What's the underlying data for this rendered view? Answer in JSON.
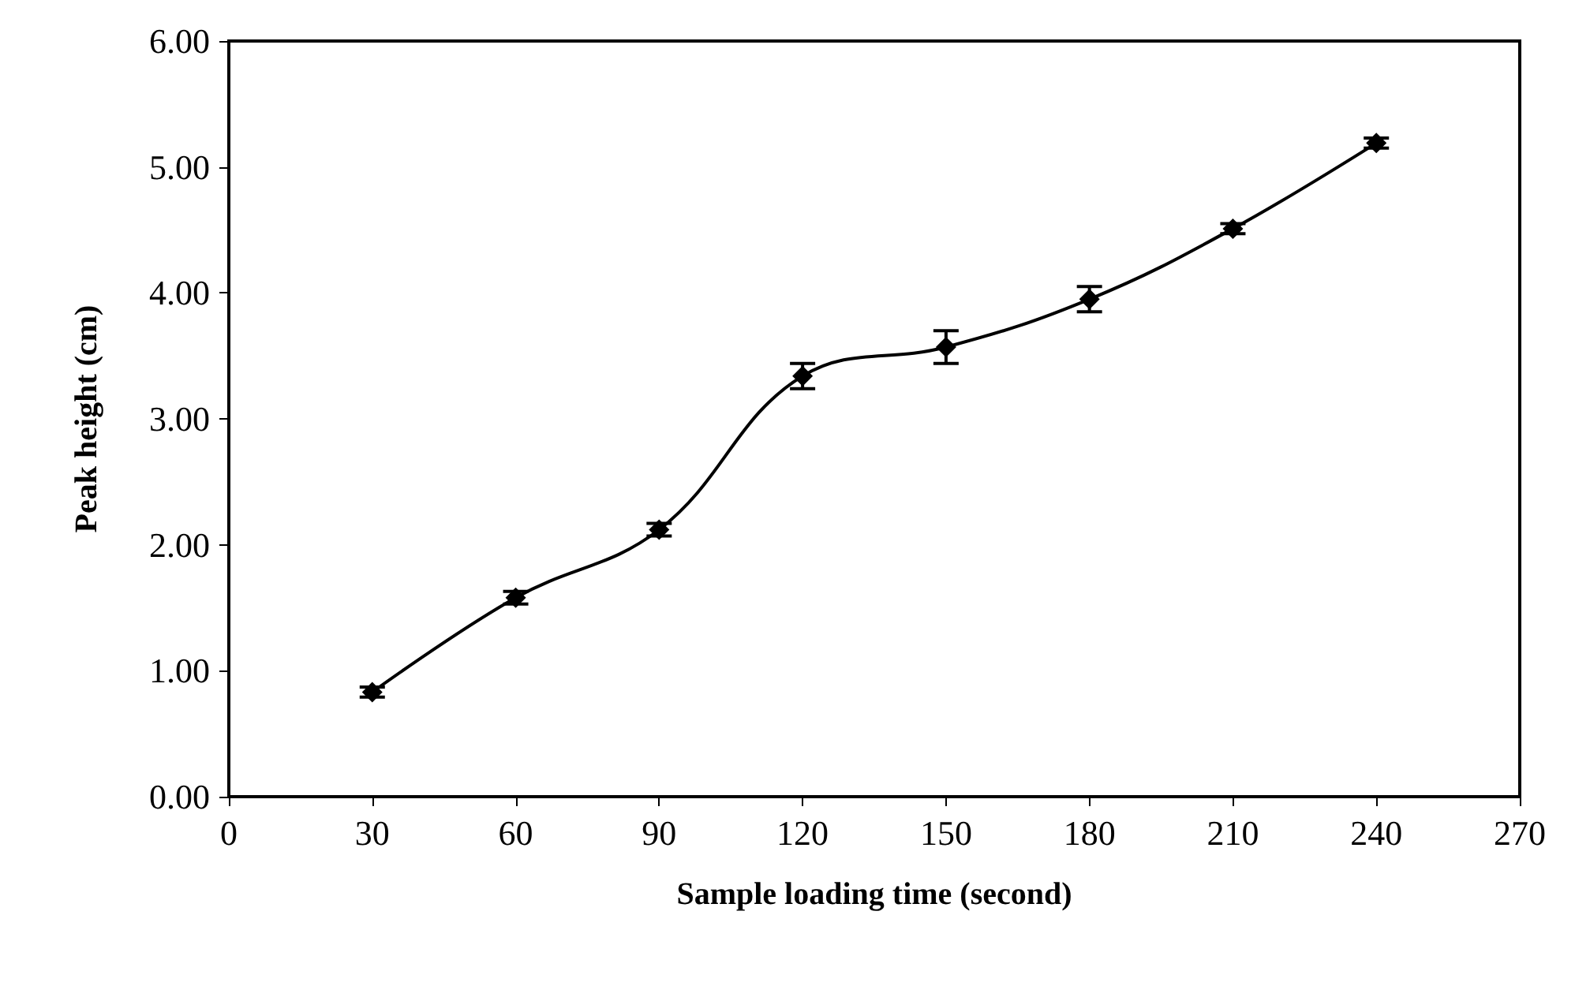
{
  "chart_data": {
    "type": "line",
    "xlabel": "Sample loading time (second)",
    "ylabel": "Peak height (cm)",
    "x": [
      30,
      60,
      90,
      120,
      150,
      180,
      210,
      240
    ],
    "series": [
      {
        "color": "#000000",
        "values": [
          0.83,
          1.58,
          2.12,
          3.34,
          3.57,
          3.95,
          4.51,
          5.19
        ],
        "errors": [
          0.04,
          0.05,
          0.05,
          0.1,
          0.13,
          0.1,
          0.04,
          0.04
        ]
      }
    ],
    "xlim": [
      0,
      270
    ],
    "xticks": [
      0,
      30,
      60,
      90,
      120,
      150,
      180,
      210,
      240,
      270
    ],
    "ylim": [
      0,
      6
    ],
    "yticks": [
      {
        "value": 0,
        "label": "0.00"
      },
      {
        "value": 1,
        "label": "1.00"
      },
      {
        "value": 2,
        "label": "2.00"
      },
      {
        "value": 3,
        "label": "3.00"
      },
      {
        "value": 4,
        "label": "4.00"
      },
      {
        "value": 5,
        "label": "5.00"
      },
      {
        "value": 6,
        "label": "6.00"
      }
    ],
    "grid": false,
    "marker": "diamond",
    "line_style": "solid"
  }
}
